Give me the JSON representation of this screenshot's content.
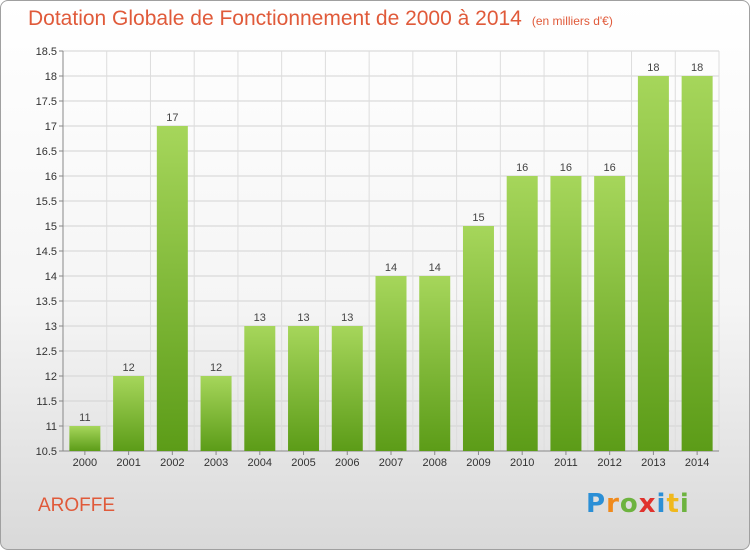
{
  "title": "Dotation Globale de Fonctionnement de 2000 à 2014",
  "subtitle": "(en milliers d'€)",
  "place_name": "AROFFE",
  "brand": {
    "letters": [
      "P",
      "r",
      "o",
      "x",
      "i",
      "t",
      "i"
    ],
    "colors": [
      "#2b8fd6",
      "#f08a1c",
      "#6db33f",
      "#e0322d",
      "#2b8fd6",
      "#f0b81c",
      "#6db33f"
    ]
  },
  "colors": {
    "bar_top": "#a6d65b",
    "bar_bottom": "#5c9c18",
    "title": "#e05a3a"
  },
  "chart_data": {
    "type": "bar",
    "categories": [
      "2000",
      "2001",
      "2002",
      "2003",
      "2004",
      "2005",
      "2006",
      "2007",
      "2008",
      "2009",
      "2010",
      "2011",
      "2012",
      "2013",
      "2014"
    ],
    "values": [
      11,
      12,
      17,
      12,
      13,
      13,
      13,
      14,
      14,
      15,
      16,
      16,
      16,
      18,
      18
    ],
    "ylim": [
      10.5,
      18.5
    ],
    "yticks": [
      "10.5",
      "11",
      "11.5",
      "12",
      "12.5",
      "13",
      "13.5",
      "14",
      "14.5",
      "15",
      "15.5",
      "16",
      "16.5",
      "17",
      "17.5",
      "18",
      "18.5"
    ],
    "grid": true,
    "xlabel": "",
    "ylabel": ""
  }
}
